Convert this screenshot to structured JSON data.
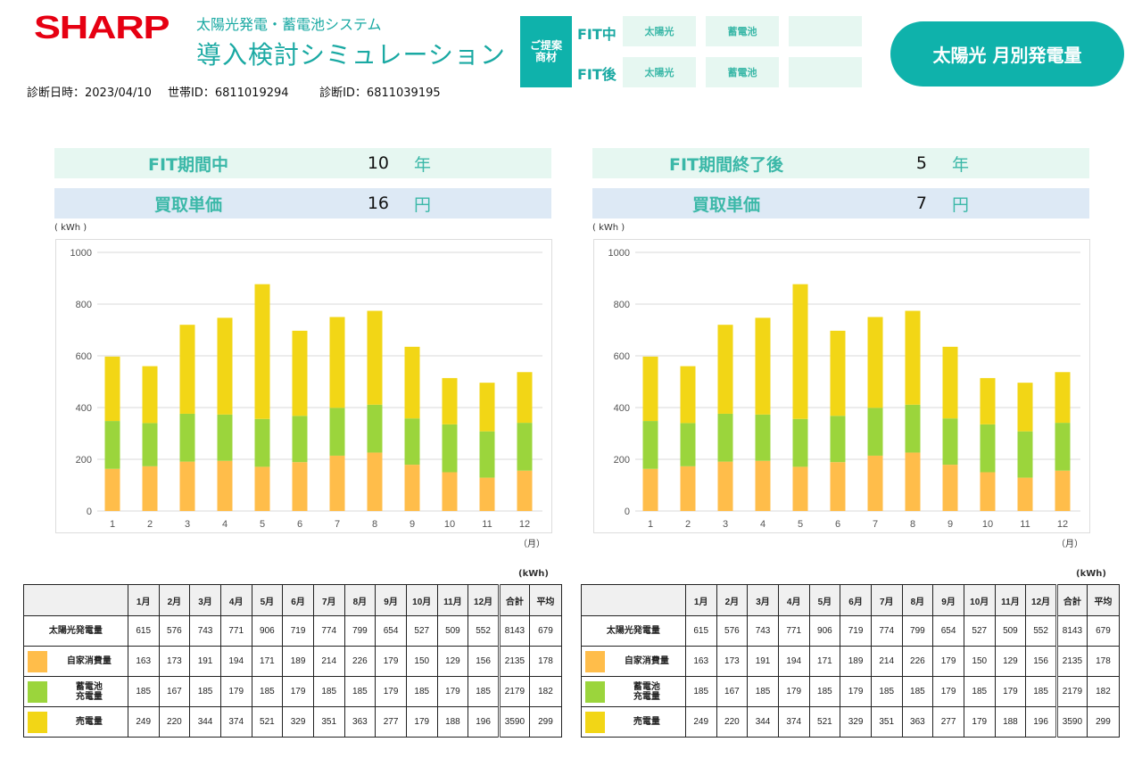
{
  "header": {
    "logo": "SHARP",
    "subtitle": "太陽光発電・蓄電池システム",
    "title": "導入検討シミュレーション",
    "date_label": "診断日時：",
    "date": "2023/04/10",
    "household_label": "世帯ID：",
    "household_id": "6811019294",
    "diag_label": "診断ID：",
    "diag_id": "6811039195"
  },
  "proposal": {
    "label": "ご提案商材",
    "fit_during": "FIT中",
    "fit_after": "FIT後",
    "fit_during_items": [
      "太陽光",
      "蓄電池",
      ""
    ],
    "fit_after_items": [
      "太陽光",
      "蓄電池",
      ""
    ]
  },
  "page_badge": "太陽光 月別発電量",
  "colors": {
    "self": "#ffbd4a",
    "battery": "#9bd53c",
    "sell": "#f2d616",
    "accent": "#0fb2ab"
  },
  "panels": [
    {
      "period_label": "FIT期間中",
      "years": "10",
      "years_unit": "年",
      "price_label": "買取単価",
      "price": "16",
      "price_unit": "円"
    },
    {
      "period_label": "FIT期間終了後",
      "years": "5",
      "years_unit": "年",
      "price_label": "買取単価",
      "price": "7",
      "price_unit": "円"
    }
  ],
  "chart_data": [
    {
      "type": "bar",
      "stacked": true,
      "ylabel": "( kWh )",
      "xlabel": "（月）",
      "ylim": [
        0,
        1000
      ],
      "yticks": [
        "0",
        "200",
        "400",
        "600",
        "800",
        "1000"
      ],
      "grid": true,
      "categories": [
        "1",
        "2",
        "3",
        "4",
        "5",
        "6",
        "7",
        "8",
        "9",
        "10",
        "11",
        "12"
      ],
      "series": [
        {
          "key": "self",
          "values": [
            163,
            173,
            191,
            194,
            171,
            189,
            214,
            226,
            179,
            150,
            129,
            156
          ]
        },
        {
          "key": "battery",
          "values": [
            185,
            167,
            185,
            179,
            185,
            179,
            185,
            185,
            179,
            185,
            179,
            185
          ]
        },
        {
          "key": "sell",
          "values": [
            249,
            220,
            344,
            374,
            521,
            329,
            351,
            363,
            277,
            179,
            188,
            196
          ]
        }
      ]
    },
    {
      "type": "bar",
      "stacked": true,
      "ylabel": "( kWh )",
      "xlabel": "（月）",
      "ylim": [
        0,
        1000
      ],
      "yticks": [
        "0",
        "200",
        "400",
        "600",
        "800",
        "1000"
      ],
      "grid": true,
      "categories": [
        "1",
        "2",
        "3",
        "4",
        "5",
        "6",
        "7",
        "8",
        "9",
        "10",
        "11",
        "12"
      ],
      "series": [
        {
          "key": "self",
          "values": [
            163,
            173,
            191,
            194,
            171,
            189,
            214,
            226,
            179,
            150,
            129,
            156
          ]
        },
        {
          "key": "battery",
          "values": [
            185,
            167,
            185,
            179,
            185,
            179,
            185,
            185,
            179,
            185,
            179,
            185
          ]
        },
        {
          "key": "sell",
          "values": [
            249,
            220,
            344,
            374,
            521,
            329,
            351,
            363,
            277,
            179,
            188,
            196
          ]
        }
      ]
    }
  ],
  "table": {
    "unit": "(kWh)",
    "headers": [
      "1月",
      "2月",
      "3月",
      "4月",
      "5月",
      "6月",
      "7月",
      "8月",
      "9月",
      "10月",
      "11月",
      "12月",
      "合計",
      "平均"
    ],
    "rows": [
      {
        "label": "太陽光発電量",
        "swatch": "",
        "values": [
          "615",
          "576",
          "743",
          "771",
          "906",
          "719",
          "774",
          "799",
          "654",
          "527",
          "509",
          "552",
          "8143",
          "679"
        ]
      },
      {
        "label": "自家消費量",
        "swatch": "self",
        "values": [
          "163",
          "173",
          "191",
          "194",
          "171",
          "189",
          "214",
          "226",
          "179",
          "150",
          "129",
          "156",
          "2135",
          "178"
        ]
      },
      {
        "label": "蓄電池\n充電量",
        "swatch": "battery",
        "values": [
          "185",
          "167",
          "185",
          "179",
          "185",
          "179",
          "185",
          "185",
          "179",
          "185",
          "179",
          "185",
          "2179",
          "182"
        ]
      },
      {
        "label": "売電量",
        "swatch": "sell",
        "values": [
          "249",
          "220",
          "344",
          "374",
          "521",
          "329",
          "351",
          "363",
          "277",
          "179",
          "188",
          "196",
          "3590",
          "299"
        ]
      }
    ]
  }
}
